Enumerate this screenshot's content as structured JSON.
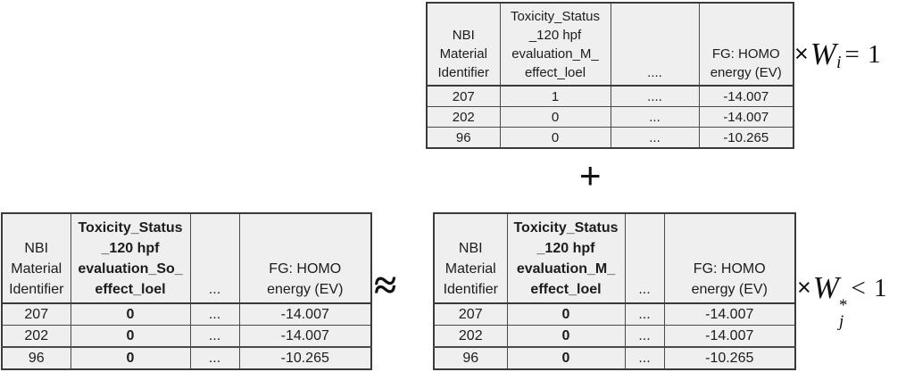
{
  "figure": {
    "description_colors": {
      "cell_bg": "#efefef",
      "border": "#3a3a3a",
      "text": "#1c1c1c",
      "page_bg": "#ffffff"
    }
  },
  "tables": {
    "top": {
      "headers": [
        "NBI\nMaterial\nIdentifier",
        "Toxicity_Status\n_120 hpf\nevaluation_M_\neffect_loel",
        "....",
        "FG: HOMO\nenergy (EV)"
      ],
      "rows": [
        [
          "207",
          "1",
          "....",
          "-14.007"
        ],
        [
          "202",
          "0",
          "...",
          "-14.007"
        ],
        [
          "96",
          "0",
          "...",
          "-10.265"
        ]
      ]
    },
    "bottom_left": {
      "headers": [
        "NBI\nMaterial\nIdentifier",
        "Toxicity_Status\n_120 hpf\nevaluation_So_\neffect_loel",
        "...",
        "FG: HOMO\nenergy (EV)"
      ],
      "rows": [
        [
          "207",
          "0",
          "...",
          "-14.007"
        ],
        [
          "202",
          "0",
          "...",
          "-14.007"
        ],
        [
          "96",
          "0",
          "...",
          "-10.265"
        ]
      ]
    },
    "bottom_right": {
      "headers": [
        "NBI\nMaterial\nIdentifier",
        "Toxicity_Status\n_120 hpf\nevaluation_M_\neffect_loel",
        "...",
        "FG: HOMO\nenergy (EV)"
      ],
      "rows": [
        [
          "207",
          "0",
          "...",
          "-14.007"
        ],
        [
          "202",
          "0",
          "...",
          "-14.007"
        ],
        [
          "96",
          "0",
          "...",
          "-10.265"
        ]
      ]
    }
  },
  "annotations": {
    "w_top": {
      "times": "×",
      "variable": "W",
      "subscript": "i",
      "relation": "= 1"
    },
    "plus": "+",
    "approx": "≈",
    "w_bottom": {
      "times": "×",
      "variable": "W",
      "subscript": "j",
      "superscript": "*",
      "relation": "< 1"
    }
  }
}
